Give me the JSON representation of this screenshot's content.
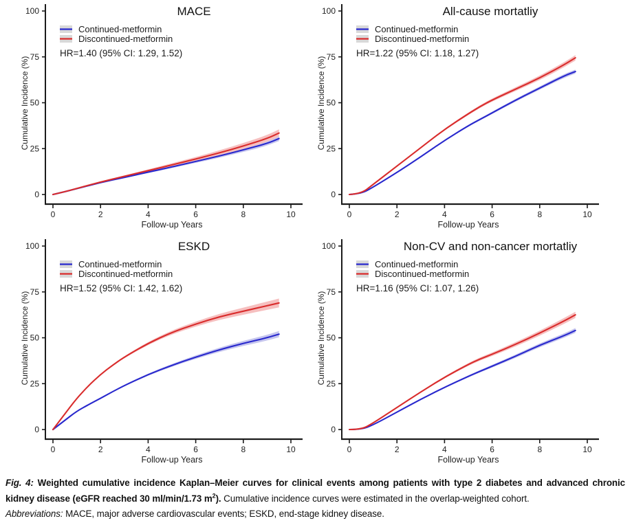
{
  "figure_title": "Fig. 4",
  "colors": {
    "continued_line": "#2828cd",
    "continued_band": "#c5c5ee",
    "discontinued_line": "#d92c2c",
    "discontinued_band": "#f6bfbf",
    "legend_key_bg": "#d9d9d9",
    "axis": "#1a1a1a",
    "tick_text": "#222222",
    "title_text": "#111111"
  },
  "chart_data": [
    {
      "type": "line",
      "title": "MACE",
      "side": "left",
      "hr_label": "HR=1.40 (95% CI: 1.29, 1.52)",
      "xlabel": "Follow-up Years",
      "ylabel": "Cumulative Incidence (%)",
      "xlim": [
        0,
        10
      ],
      "ylim": [
        0,
        100
      ],
      "xticks": [
        0,
        2,
        4,
        6,
        8,
        10
      ],
      "yticks": [
        0,
        25,
        50,
        75,
        100
      ],
      "legend_position": "top-left-inside",
      "grid": false,
      "series": [
        {
          "name": "Continued-metformin",
          "color": "#2828cd",
          "band": "#c5c5ee",
          "ci_end": 1.4,
          "x": [
            0,
            0.5,
            1,
            2,
            3,
            4,
            5,
            6,
            7,
            8,
            9,
            9.5
          ],
          "y": [
            0,
            1.5,
            3.2,
            6.5,
            9.3,
            12.2,
            15,
            18,
            21,
            24.3,
            27.8,
            30.5
          ]
        },
        {
          "name": "Discontinued-metformin",
          "color": "#d92c2c",
          "band": "#f6bfbf",
          "ci_end": 2.0,
          "x": [
            0,
            0.5,
            1,
            2,
            3,
            4,
            5,
            6,
            7,
            8,
            9,
            9.5
          ],
          "y": [
            0,
            1.5,
            3.3,
            6.8,
            9.9,
            13,
            16.1,
            19.3,
            22.7,
            26.4,
            30.5,
            33.5
          ]
        }
      ]
    },
    {
      "type": "line",
      "title": "All-cause mortatliy",
      "side": "right",
      "hr_label": "HR=1.22 (95% CI: 1.18, 1.27)",
      "xlabel": "Follow-up Years",
      "ylabel": "Cumulative Incidence (%)",
      "xlim": [
        0,
        10
      ],
      "ylim": [
        0,
        100
      ],
      "xticks": [
        0,
        2,
        4,
        6,
        8,
        10
      ],
      "yticks": [
        0,
        25,
        50,
        75,
        100
      ],
      "legend_position": "top-left-inside",
      "grid": false,
      "series": [
        {
          "name": "Continued-metformin",
          "color": "#2828cd",
          "band": "#c5c5ee",
          "ci_end": 1.1,
          "x": [
            0,
            0.5,
            1,
            2,
            3,
            4,
            5,
            5.5,
            6,
            7,
            8,
            9,
            9.5
          ],
          "y": [
            0,
            0.4,
            4,
            12,
            20.5,
            29.5,
            37.5,
            41,
            44.5,
            51.5,
            58,
            64.5,
            67
          ]
        },
        {
          "name": "Discontinued-metformin",
          "color": "#d92c2c",
          "band": "#f6bfbf",
          "ci_end": 1.5,
          "x": [
            0,
            0.5,
            1,
            2,
            3,
            4,
            5,
            5.5,
            6,
            7,
            8,
            9,
            9.5
          ],
          "y": [
            0,
            0.4,
            5.5,
            15.5,
            25.5,
            35.5,
            44,
            48,
            51.5,
            57.5,
            63.5,
            70.5,
            74.5
          ]
        }
      ]
    },
    {
      "type": "line",
      "title": "ESKD",
      "side": "left",
      "hr_label": "HR=1.52 (95% CI: 1.42, 1.62)",
      "xlabel": "Follow-up Years",
      "ylabel": "Cumulative Incidence (%)",
      "xlim": [
        0,
        10
      ],
      "ylim": [
        0,
        100
      ],
      "xticks": [
        0,
        2,
        4,
        6,
        8,
        10
      ],
      "yticks": [
        0,
        25,
        50,
        75,
        100
      ],
      "legend_position": "top-left-inside",
      "grid": false,
      "series": [
        {
          "name": "Continued-metformin",
          "color": "#2828cd",
          "band": "#c5c5ee",
          "ci_end": 1.7,
          "x": [
            0,
            0.5,
            1,
            1.5,
            2,
            2.5,
            3,
            4,
            5,
            6,
            7,
            8,
            9,
            9.5
          ],
          "y": [
            0,
            5,
            10,
            13.6,
            17,
            20.6,
            24,
            30,
            35,
            39.5,
            43.5,
            47,
            50,
            52
          ]
        },
        {
          "name": "Discontinued-metformin",
          "color": "#d92c2c",
          "band": "#f6bfbf",
          "ci_end": 2.4,
          "x": [
            0,
            0.5,
            1,
            1.5,
            2,
            2.5,
            3,
            4,
            5,
            6,
            7,
            8,
            9,
            9.5
          ],
          "y": [
            0,
            8.5,
            17,
            24,
            30,
            35,
            39.5,
            47,
            53,
            57.5,
            61.5,
            64.5,
            67.5,
            69
          ]
        }
      ]
    },
    {
      "type": "line",
      "title": "Non-CV and non-cancer mortatliy",
      "side": "right",
      "hr_label": "HR=1.16 (95% CI: 1.07, 1.26)",
      "xlabel": "Follow-up Years",
      "ylabel": "Cumulative Incidence (%)",
      "xlim": [
        0,
        10
      ],
      "ylim": [
        0,
        100
      ],
      "xticks": [
        0,
        2,
        4,
        6,
        8,
        10
      ],
      "yticks": [
        0,
        25,
        50,
        75,
        100
      ],
      "legend_position": "top-left-inside",
      "grid": false,
      "series": [
        {
          "name": "Continued-metformin",
          "color": "#2828cd",
          "band": "#c5c5ee",
          "ci_end": 1.3,
          "x": [
            0,
            0.5,
            1,
            2,
            3,
            4,
            5,
            5.5,
            6,
            7,
            8,
            9,
            9.5
          ],
          "y": [
            0,
            0,
            2.5,
            9.5,
            16.5,
            23,
            29,
            31.8,
            34.5,
            40,
            46,
            51,
            54
          ]
        },
        {
          "name": "Discontinued-metformin",
          "color": "#d92c2c",
          "band": "#f6bfbf",
          "ci_end": 1.7,
          "x": [
            0,
            0.5,
            1,
            2,
            3,
            4,
            5,
            5.5,
            6,
            7,
            8,
            9,
            9.5
          ],
          "y": [
            0,
            0,
            3.5,
            12,
            20.5,
            28.5,
            35.5,
            38.5,
            41,
            46.5,
            52.5,
            59,
            62.5
          ]
        }
      ]
    }
  ],
  "caption": {
    "segments": [
      {
        "t": "Fig. 4: ",
        "s": "bi"
      },
      {
        "t": "Weighted cumulative incidence Kaplan–Meier curves for clinical events among patients with type 2 diabetes and advanced chronic kidney disease (eGFR reached 30 ml/min/1.73 m",
        "s": "b"
      },
      {
        "t": "2",
        "s": "bsup"
      },
      {
        "t": "). ",
        "s": "b"
      },
      {
        "t": "Cumulative incidence curves were estimated in the overlap-weighted cohort.",
        "s": "r"
      },
      {
        "t": "",
        "s": "br"
      },
      {
        "t": "Abbreviations:",
        "s": "i"
      },
      {
        "t": " MACE, major adverse cardiovascular events; ESKD, end-stage kidney disease.",
        "s": "r"
      }
    ]
  }
}
